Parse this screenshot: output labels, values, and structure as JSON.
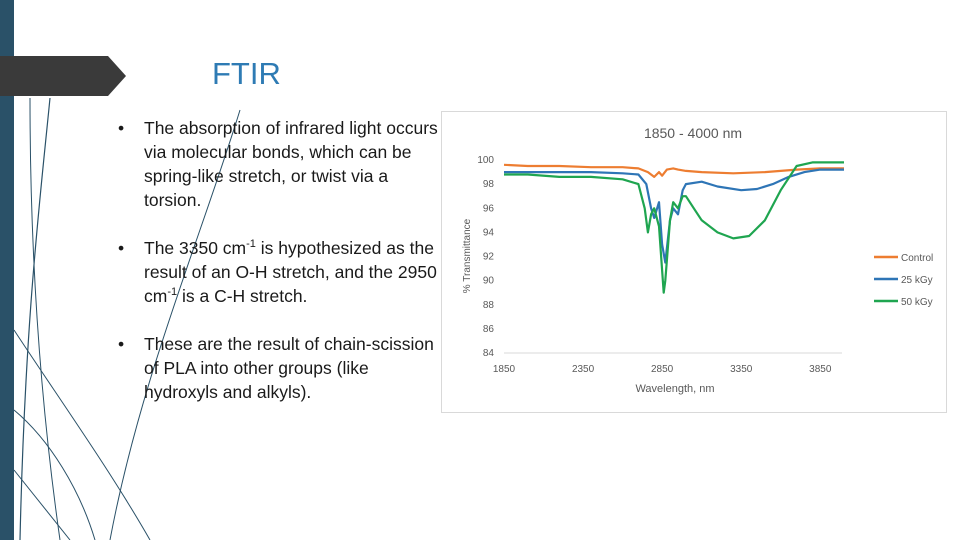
{
  "slide": {
    "title": "FTIR",
    "bullets": [
      {
        "text": "The absorption of infrared light occurs via molecular bonds, which can be spring-like stretch, or twist via a torsion."
      },
      {
        "pre1": "The 3350 cm",
        "sup1": "-1",
        "mid": " is hypothesized as the result of an O-H stretch, and the 2950 cm",
        "sup2": "-1",
        "post": " is a C-H stretch."
      },
      {
        "text": "These are the result of chain-scission of PLA into other groups (like hydroxyls and alkyls)."
      }
    ],
    "bullet_symbol": "•",
    "colors": {
      "accent_bar": "#2a5168",
      "title": "#2e7bb4",
      "title_band": "#3a3a3a"
    }
  },
  "chart_data": {
    "type": "line",
    "title": "1850 - 4000 nm",
    "xlabel": "Wavelength, nm",
    "ylabel": "% Transmittance",
    "xlim": [
      1850,
      4000
    ],
    "ylim": [
      84,
      100
    ],
    "xticks": [
      1850,
      2350,
      2850,
      3350,
      3850
    ],
    "yticks": [
      84,
      86,
      88,
      90,
      92,
      94,
      96,
      98,
      100
    ],
    "grid": false,
    "legend_position": "right",
    "series": [
      {
        "name": "Control",
        "color": "#ed7d31",
        "x": [
          1850,
          2000,
          2200,
          2400,
          2600,
          2700,
          2760,
          2800,
          2830,
          2850,
          2880,
          2920,
          2950,
          3000,
          3100,
          3300,
          3500,
          3700,
          3850,
          4000
        ],
        "y": [
          99.6,
          99.5,
          99.5,
          99.4,
          99.4,
          99.3,
          99.0,
          98.6,
          99.0,
          98.7,
          99.2,
          99.3,
          99.2,
          99.1,
          99.0,
          98.9,
          99.0,
          99.2,
          99.3,
          99.3
        ]
      },
      {
        "name": "25 kGy",
        "color": "#2e75b6",
        "x": [
          1850,
          2000,
          2200,
          2400,
          2600,
          2700,
          2750,
          2780,
          2800,
          2830,
          2850,
          2870,
          2900,
          2920,
          2950,
          2980,
          3000,
          3100,
          3200,
          3350,
          3450,
          3550,
          3650,
          3750,
          3850,
          4000
        ],
        "y": [
          99.0,
          99.0,
          99.0,
          99.0,
          98.9,
          98.8,
          98.0,
          96.0,
          95.2,
          96.5,
          93.0,
          91.5,
          95.0,
          96.0,
          95.5,
          97.5,
          98.0,
          98.2,
          97.8,
          97.5,
          97.6,
          98.0,
          98.6,
          99.0,
          99.2,
          99.2
        ]
      },
      {
        "name": "50 kGy",
        "color": "#1fa550",
        "x": [
          1850,
          2000,
          2200,
          2400,
          2600,
          2700,
          2740,
          2760,
          2780,
          2800,
          2830,
          2860,
          2870,
          2900,
          2920,
          2950,
          2980,
          3000,
          3050,
          3100,
          3200,
          3300,
          3400,
          3500,
          3600,
          3700,
          3800,
          3850,
          4000
        ],
        "y": [
          98.8,
          98.8,
          98.6,
          98.6,
          98.4,
          98.0,
          96.0,
          94.0,
          95.5,
          96.0,
          94.5,
          89.0,
          90.0,
          95.0,
          96.5,
          96.0,
          97.0,
          97.0,
          96.0,
          95.0,
          94.0,
          93.5,
          93.7,
          95.0,
          97.5,
          99.5,
          99.8,
          99.8,
          99.8
        ]
      }
    ]
  }
}
